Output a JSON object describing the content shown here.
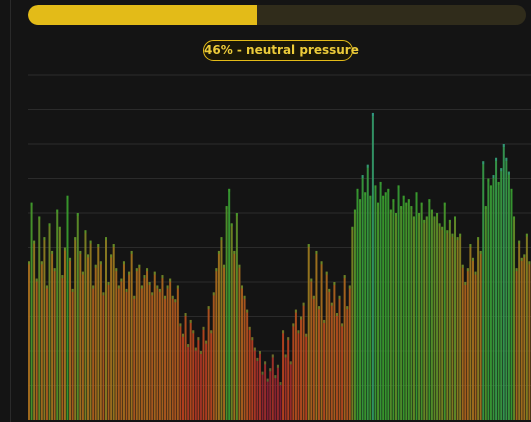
{
  "pressure_meter": {
    "value_percent": 46,
    "fill_color": "#e3bb18",
    "track_color": "#302c1b"
  },
  "badge": {
    "label": "46% - neutral pressure"
  },
  "colors": {
    "background": "#141414",
    "gridline": "#2b2b2b",
    "low": "#8a1a38",
    "mid": "#c0431f",
    "high": "#a87a1e",
    "peak": "#3aa12e",
    "cap_high": "#2f9a9a"
  },
  "chart_data": {
    "type": "bar",
    "title": "",
    "xlabel": "",
    "ylabel": "",
    "ylim": [
      0,
      10
    ],
    "gridlines": true,
    "legend": "none",
    "series": [
      {
        "values": [
          4.6,
          6.3,
          5.2,
          4.1,
          5.9,
          4.6,
          5.3,
          3.9,
          5.7,
          4.9,
          4.4,
          6.1,
          5.6,
          4.2,
          5.0,
          6.5,
          4.7,
          3.8,
          5.3,
          6.0,
          4.9,
          4.3,
          5.5,
          4.8,
          5.2,
          3.9,
          4.5,
          5.1,
          4.6,
          3.7,
          5.3,
          4.0,
          4.8,
          5.1,
          4.4,
          3.9,
          4.1,
          4.6,
          3.8,
          4.3,
          4.9,
          3.6,
          4.4,
          4.5,
          3.9,
          4.2,
          4.4,
          4.0,
          3.7,
          4.3,
          3.9,
          3.8,
          4.2,
          3.6,
          3.9,
          4.1,
          3.6,
          3.5,
          3.9,
          2.8,
          2.5,
          3.1,
          2.2,
          2.9,
          2.6,
          2.1,
          2.4,
          2.0,
          2.7,
          2.3,
          3.3,
          2.6,
          3.7,
          4.4,
          4.9,
          5.3,
          4.5,
          6.2,
          6.7,
          5.7,
          4.9,
          6.0,
          4.5,
          3.9,
          3.6,
          3.2,
          2.7,
          2.4,
          2.1,
          1.8,
          2.0,
          1.4,
          1.7,
          1.2,
          1.5,
          1.9,
          1.3,
          1.6,
          1.1,
          2.6,
          1.9,
          2.4,
          1.7,
          2.8,
          3.2,
          2.6,
          3.0,
          3.4,
          2.5,
          5.1,
          4.1,
          3.6,
          4.9,
          3.3,
          4.6,
          2.9,
          4.3,
          3.8,
          3.4,
          4.0,
          3.1,
          3.6,
          2.8,
          4.2,
          3.3,
          3.9,
          5.6,
          6.1,
          6.7,
          6.4,
          7.1,
          6.6,
          7.4,
          6.5,
          8.9,
          6.8,
          6.3,
          6.9,
          6.5,
          6.6,
          6.7,
          6.1,
          6.4,
          6.0,
          6.8,
          6.2,
          6.5,
          6.3,
          6.4,
          6.2,
          5.9,
          6.6,
          6.0,
          6.3,
          5.8,
          5.9,
          6.4,
          6.1,
          5.9,
          6.0,
          5.7,
          5.6,
          6.3,
          5.5,
          5.8,
          5.4,
          5.9,
          5.3,
          5.4,
          4.5,
          4.0,
          4.4,
          5.1,
          4.7,
          4.3,
          5.3,
          4.9,
          7.5,
          6.2,
          7.0,
          6.8,
          7.1,
          7.6,
          6.9,
          7.3,
          8.0,
          7.6,
          7.2,
          6.7,
          5.9,
          4.4,
          5.2,
          4.7,
          4.8,
          5.4,
          4.6
        ]
      }
    ]
  }
}
